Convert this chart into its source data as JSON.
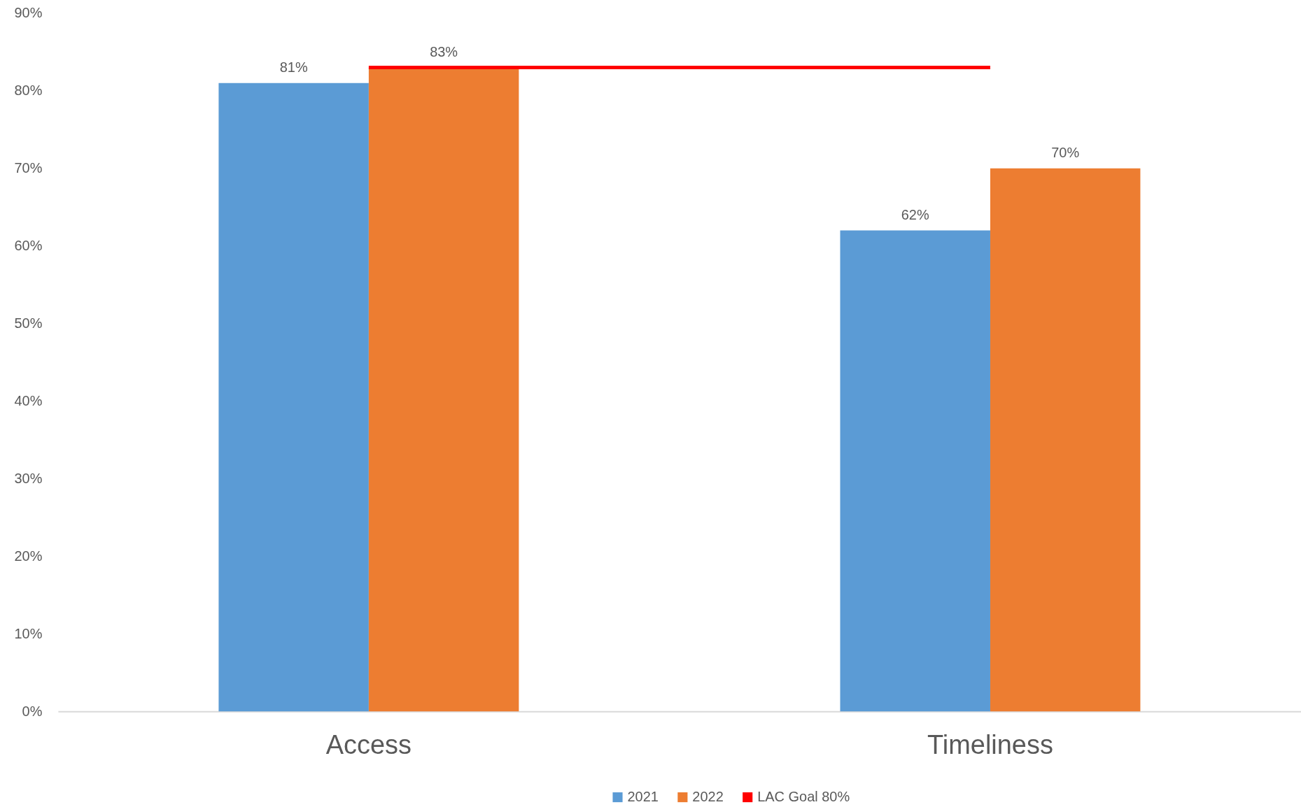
{
  "chart_data": {
    "type": "bar",
    "categories": [
      "Access",
      "Timeliness"
    ],
    "series": [
      {
        "name": "2021",
        "color": "#5b9bd5",
        "values": [
          81,
          62
        ],
        "value_labels": [
          "81%",
          "62%"
        ]
      },
      {
        "name": "2022",
        "color": "#ed7d31",
        "values": [
          83,
          70
        ],
        "value_labels": [
          "83%",
          "70%"
        ]
      },
      {
        "name": "LAC Goal 80%",
        "type": "line",
        "color": "#ff0000",
        "values": [
          83,
          83
        ]
      }
    ],
    "ylim": [
      0,
      90
    ],
    "yticks": [
      {
        "value": 0,
        "label": "0%"
      },
      {
        "value": 10,
        "label": "10%"
      },
      {
        "value": 20,
        "label": "20%"
      },
      {
        "value": 30,
        "label": "30%"
      },
      {
        "value": 40,
        "label": "40%"
      },
      {
        "value": 50,
        "label": "50%"
      },
      {
        "value": 60,
        "label": "60%"
      },
      {
        "value": 70,
        "label": "70%"
      },
      {
        "value": 80,
        "label": "80%"
      },
      {
        "value": 90,
        "label": "90%"
      }
    ],
    "grid": false,
    "legend": "bottom"
  }
}
